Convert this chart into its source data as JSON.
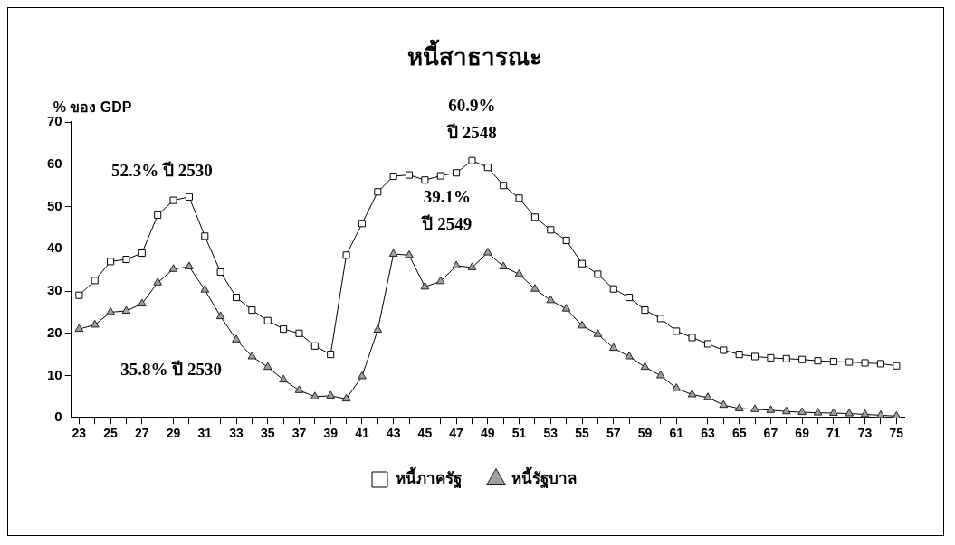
{
  "chart_data": {
    "type": "line",
    "title": "หนี้สาธารณะ",
    "ylabel": "% ของ GDP",
    "x": [
      23,
      24,
      25,
      26,
      27,
      28,
      29,
      30,
      31,
      32,
      33,
      34,
      35,
      36,
      37,
      38,
      39,
      40,
      41,
      42,
      43,
      44,
      45,
      46,
      47,
      48,
      49,
      50,
      51,
      52,
      53,
      54,
      55,
      56,
      57,
      58,
      59,
      60,
      61,
      62,
      63,
      64,
      65,
      66,
      67,
      68,
      69,
      70,
      71,
      72,
      73,
      74,
      75
    ],
    "xlim": [
      22.5,
      75.5
    ],
    "xticks": [
      23,
      {
        "value": 24,
        "label": null
      },
      25,
      {
        "value": 26,
        "label": null
      },
      27,
      {
        "value": 28,
        "label": null
      },
      29,
      {
        "value": 30,
        "label": null
      },
      31,
      {
        "value": 32,
        "label": null
      },
      33,
      {
        "value": 34,
        "label": null
      },
      35,
      {
        "value": 36,
        "label": null
      },
      37,
      {
        "value": 38,
        "label": null
      },
      39,
      {
        "value": 40,
        "label": null
      },
      41,
      {
        "value": 42,
        "label": null
      },
      43,
      {
        "value": 44,
        "label": null
      },
      45,
      {
        "value": 46,
        "label": null
      },
      47,
      {
        "value": 48,
        "label": null
      },
      49,
      {
        "value": 50,
        "label": null
      },
      51,
      {
        "value": 52,
        "label": null
      },
      53,
      {
        "value": 54,
        "label": null
      },
      55,
      {
        "value": 56,
        "label": null
      },
      57,
      {
        "value": 58,
        "label": null
      },
      59,
      {
        "value": 60,
        "label": null
      },
      61,
      {
        "value": 62,
        "label": null
      },
      63,
      {
        "value": 64,
        "label": null
      },
      65,
      {
        "value": 66,
        "label": null
      },
      67,
      {
        "value": 68,
        "label": null
      },
      69,
      {
        "value": 70,
        "label": null
      },
      71,
      {
        "value": 72,
        "label": null
      },
      73,
      {
        "value": 74,
        "label": null
      },
      75
    ],
    "ylim": [
      0,
      70
    ],
    "yticks": [
      0,
      10,
      20,
      30,
      40,
      50,
      60,
      70
    ],
    "grid": false,
    "legend": "bottom",
    "series": [
      {
        "name": "หนี้ภาครัฐ",
        "color": "#000000",
        "marker": "square",
        "values": [
          29,
          32.5,
          37,
          37.5,
          39,
          48,
          51.5,
          52.3,
          43,
          34.5,
          28.5,
          25.5,
          23,
          21,
          20,
          17,
          15,
          38.5,
          46,
          53.5,
          57.2,
          57.5,
          56.3,
          57.3,
          58,
          60.9,
          59.3,
          55,
          52,
          47.5,
          44.5,
          42,
          36.5,
          34,
          30.5,
          28.5,
          25.5,
          23.5,
          20.5,
          19,
          17.5,
          16,
          15,
          14.5,
          14.2,
          14,
          13.8,
          13.5,
          13.3,
          13.2,
          13,
          12.8,
          12.3
        ]
      },
      {
        "name": "หนี้รัฐบาล",
        "color": "#a0a0a0",
        "marker": "triangle",
        "values": [
          21,
          22,
          25,
          25.3,
          27,
          32,
          35.2,
          35.8,
          30.3,
          24,
          18.5,
          14.5,
          12,
          9,
          6.5,
          5,
          5.2,
          4.5,
          9.8,
          20.8,
          38.8,
          38.5,
          31,
          32.3,
          36,
          35.6,
          39.1,
          35.8,
          34,
          30.5,
          27.8,
          25.8,
          21.8,
          19.8,
          16.5,
          14.5,
          12,
          10,
          7,
          5.5,
          4.8,
          3,
          2.2,
          2,
          1.8,
          1.5,
          1.3,
          1.2,
          1.1,
          1,
          0.8,
          0.6,
          0.4
        ]
      }
    ],
    "annotations": [
      {
        "text": "52.3% ปี 2530",
        "x": 30,
        "y": 52.3
      },
      "35.8% ปี 2530",
      {
        "text": "60.9%\nปี 2548",
        "x": 48,
        "y": 60.9
      },
      {
        "text": "39.1%\nปี 2549",
        "x": 49,
        "y": 39.1
      }
    ]
  }
}
